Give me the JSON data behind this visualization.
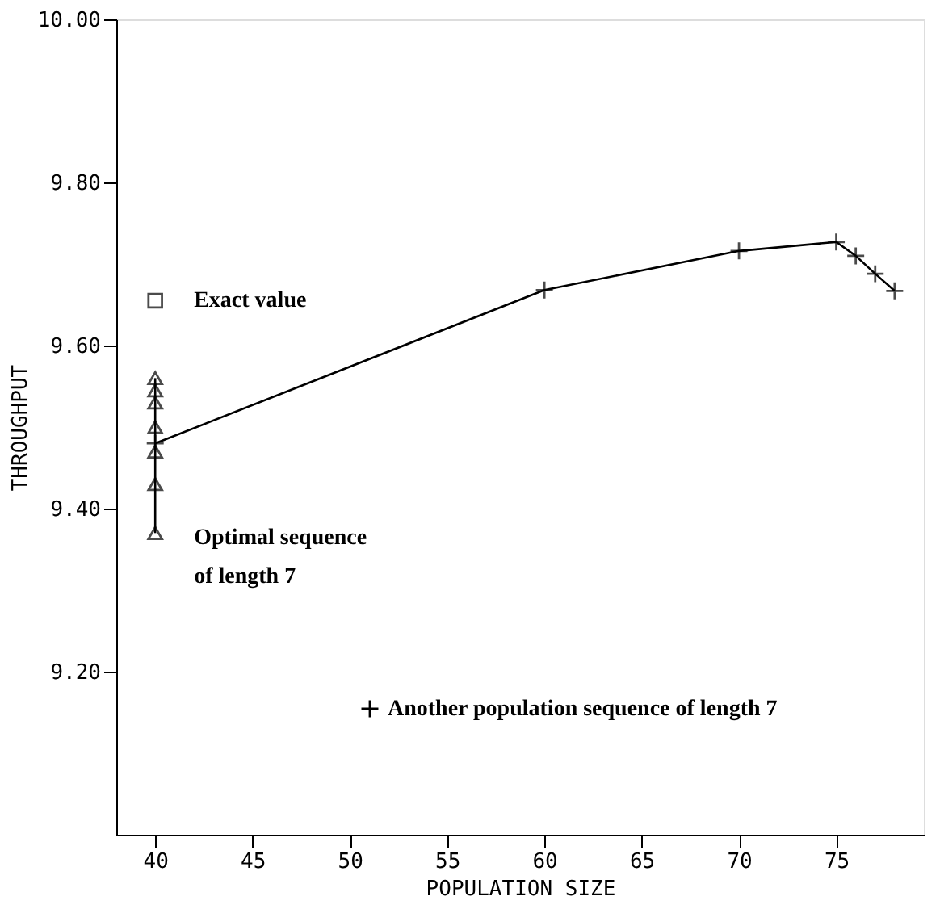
{
  "chart_data": {
    "type": "line",
    "xlabel": "POPULATION SIZE",
    "ylabel": "THROUGHPUT",
    "xlim": [
      38,
      79.5
    ],
    "xticks": [
      40,
      45,
      50,
      55,
      60,
      65,
      70,
      75
    ],
    "ylim": [
      9.0,
      10.0
    ],
    "yticks": [
      {
        "value": 9.2,
        "label": "9.20"
      },
      {
        "value": 9.4,
        "label": "9.40"
      },
      {
        "value": 9.6,
        "label": "9.60"
      },
      {
        "value": 9.8,
        "label": "9.80"
      },
      {
        "value": 10.0,
        "label": "10.00"
      }
    ],
    "grid": false,
    "legend": "bottom",
    "series": [
      {
        "name": "Exact value",
        "type": "scatter",
        "marker": "square",
        "color": "#000000",
        "x": [
          40
        ],
        "values": [
          9.655
        ]
      },
      {
        "name": "Optimal sequence of length 7",
        "marker": "triangle",
        "color": "#000000",
        "x": [
          40,
          40,
          40,
          40,
          40,
          40,
          40
        ],
        "values": [
          9.56,
          9.545,
          9.53,
          9.5,
          9.47,
          9.43,
          9.37
        ]
      },
      {
        "name": "Another population sequence of length 7",
        "marker": "cross",
        "color": "#000000",
        "x": [
          40,
          60,
          70,
          75,
          76,
          77,
          78
        ],
        "values": [
          9.48,
          9.668,
          9.716,
          9.727,
          9.71,
          9.688,
          9.667
        ]
      }
    ]
  }
}
